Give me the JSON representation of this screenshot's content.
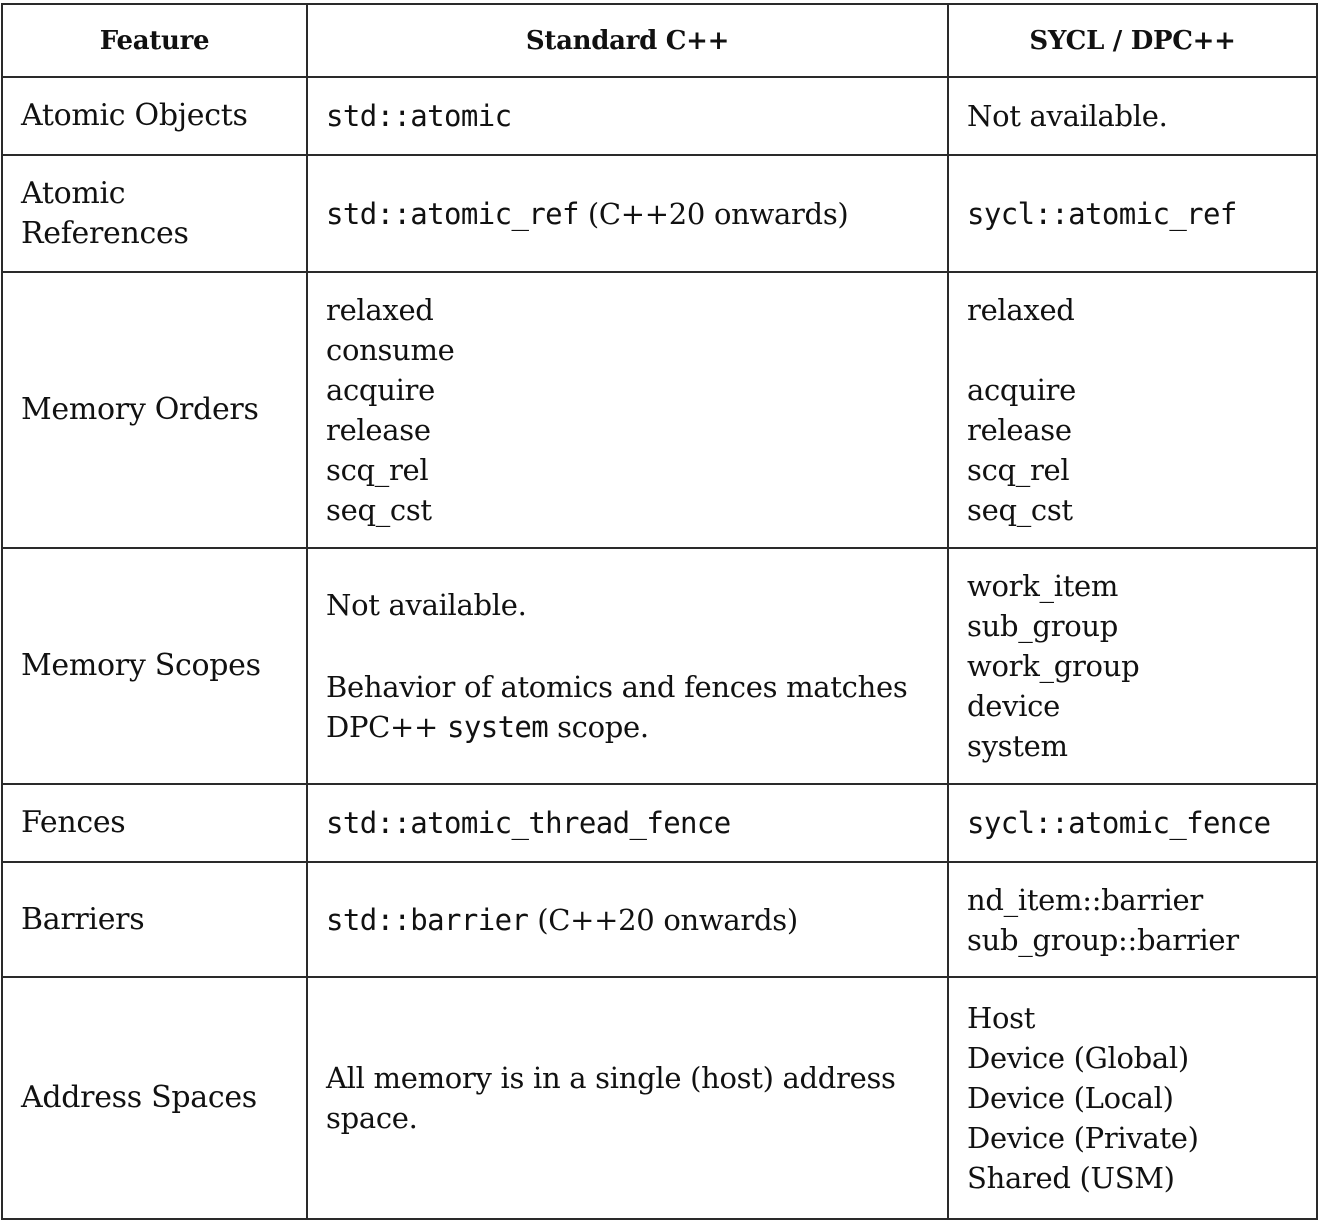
{
  "header": {
    "feature": "Feature",
    "standard": "Standard C++",
    "sycl": "SYCL / DPC++"
  },
  "rows": {
    "atomic_objects": {
      "feature": "Atomic Objects",
      "standard": "std::atomic",
      "sycl": "Not available."
    },
    "atomic_references": {
      "feature_line1": "Atomic",
      "feature_line2": "References",
      "standard_code": "std::atomic_ref",
      "standard_note": "(C++20 onwards)",
      "sycl": "sycl::atomic_ref"
    },
    "memory_orders": {
      "feature": "Memory Orders",
      "standard": [
        "relaxed",
        "consume",
        "acquire",
        "release",
        "scq_rel",
        "seq_cst"
      ],
      "sycl": [
        "relaxed",
        "acquire",
        "release",
        "scq_rel",
        "seq_cst"
      ]
    },
    "memory_scopes": {
      "feature": "Memory Scopes",
      "standard_line1": "Not available.",
      "standard_line2": "Behavior of atomics and fences matches",
      "standard_line3_prefix": "DPC++",
      "standard_line3_code": "system",
      "standard_line3_suffix": "scope.",
      "sycl": [
        "work_item",
        "sub_group",
        "work_group",
        "device",
        "system"
      ]
    },
    "fences": {
      "feature": "Fences",
      "standard": "std::atomic_thread_fence",
      "sycl": "sycl::atomic_fence"
    },
    "barriers": {
      "feature": "Barriers",
      "standard_code": "std::barrier",
      "standard_note": "(C++20 onwards)",
      "sycl": [
        "nd_item::barrier",
        "sub_group::barrier"
      ]
    },
    "address_spaces": {
      "feature": "Address Spaces",
      "standard_line1": "All memory is in a single (host) address",
      "standard_line2": "space.",
      "sycl": [
        "Host",
        "Device (Global)",
        "Device (Local)",
        "Device (Private)",
        "Shared (USM)"
      ]
    }
  }
}
